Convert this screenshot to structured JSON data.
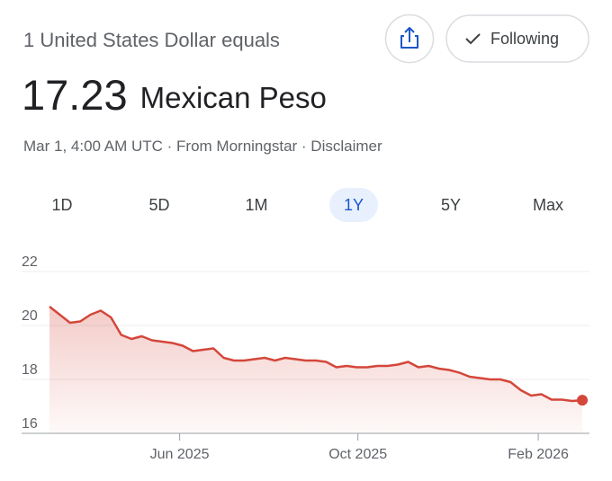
{
  "header": {
    "subtitle": "1 United States Dollar equals",
    "rate": "17.23",
    "currency": "Mexican Peso",
    "source": "Mar 1, 4:00 AM UTC · From Morningstar · Disclaimer",
    "follow_button": "Following"
  },
  "tabs": [
    "1D",
    "5D",
    "1M",
    "1Y",
    "5Y",
    "Max"
  ],
  "selected_tab": "1Y",
  "chart_data": {
    "type": "line",
    "color": "#d4473a",
    "values": [
      20.7,
      20.4,
      20.1,
      20.15,
      20.4,
      20.55,
      20.3,
      19.65,
      19.5,
      19.6,
      19.45,
      19.4,
      19.35,
      19.25,
      19.05,
      19.1,
      19.15,
      18.8,
      18.7,
      18.7,
      18.75,
      18.8,
      18.7,
      18.8,
      18.75,
      18.7,
      18.7,
      18.65,
      18.45,
      18.5,
      18.45,
      18.45,
      18.5,
      18.5,
      18.55,
      18.65,
      18.45,
      18.5,
      18.4,
      18.35,
      18.25,
      18.1,
      18.05,
      18.0,
      18.0,
      17.9,
      17.6,
      17.4,
      17.45,
      17.25,
      17.25,
      17.2,
      17.23
    ],
    "xlim": [
      0,
      52.7
    ],
    "xticks": [
      {
        "value": 12.7,
        "label": "Jun 2025"
      },
      {
        "value": 30.1,
        "label": "Oct 2025"
      },
      {
        "value": 47.7,
        "label": "Feb 2026"
      }
    ],
    "ylim": [
      16,
      22
    ],
    "yticks": [
      16,
      18,
      20,
      22
    ],
    "grid": true
  }
}
